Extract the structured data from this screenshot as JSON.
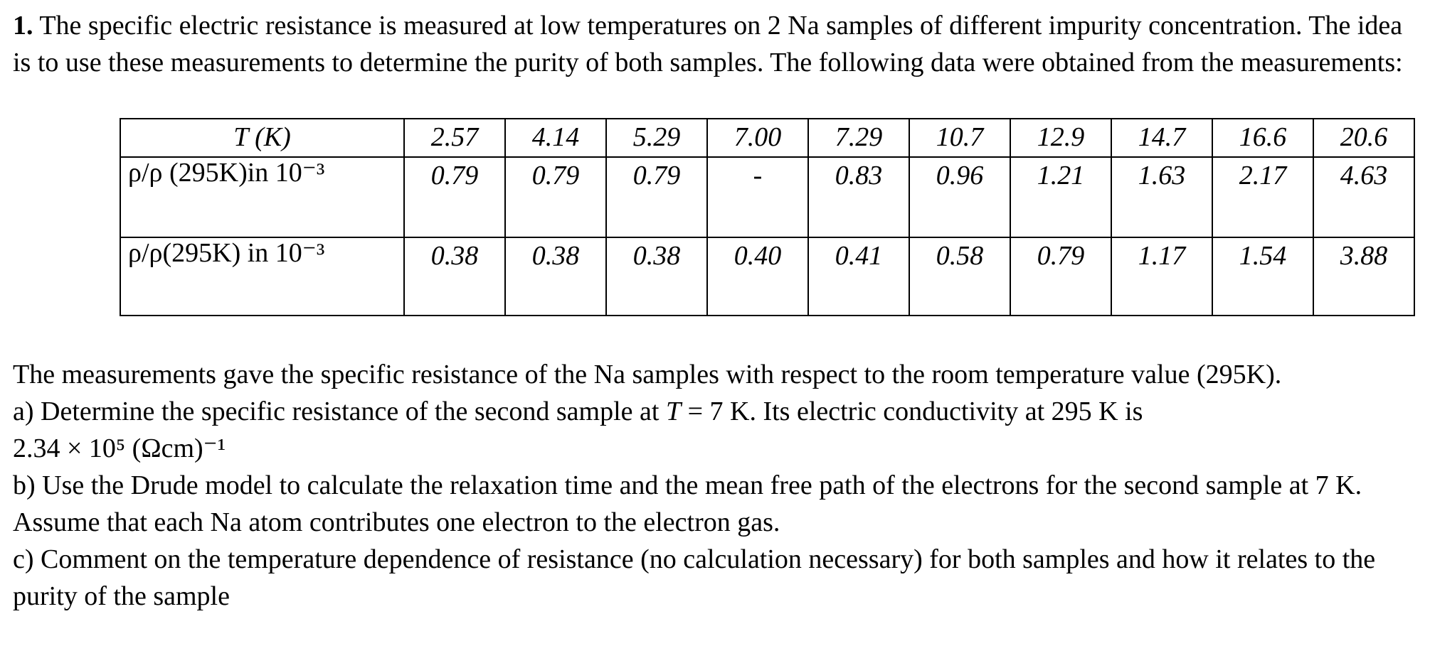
{
  "question": {
    "number": "1.",
    "intro": "The specific electric resistance is measured at low temperatures on 2 Na samples of different impurity concentration. The idea is to use these measurements to determine the purity of both samples. The following data were obtained from the measurements:",
    "table": {
      "rows": [
        [
          "T (K)",
          "2.57",
          "4.14",
          "5.29",
          "7.00",
          "7.29",
          "10.7",
          "12.9",
          "14.7",
          "16.6",
          "20.6"
        ],
        [
          "ρ/ρ (295K)in 10⁻³",
          "0.79",
          "0.79",
          "0.79",
          "-",
          "0.83",
          "0.96",
          "1.21",
          "1.63",
          "2.17",
          "4.63"
        ],
        [
          "ρ/ρ(295K) in 10⁻³",
          "0.38",
          "0.38",
          "0.38",
          "0.40",
          "0.41",
          "0.58",
          "0.79",
          "1.17",
          "1.54",
          "3.88"
        ]
      ]
    },
    "statement": "The measurements gave the specific resistance of the Na samples with respect to the room temperature value (295K).",
    "part_a": {
      "before": "a) Determine the specific resistance of the second sample at ",
      "variable": "T",
      "after": " = 7 K. Its electric conductivity at 295 K is",
      "value": "2.34 × 10⁵ (Ωcm)⁻¹"
    },
    "part_b": "b) Use the Drude model to calculate the relaxation time and the mean free path of the electrons for the second sample at 7 K. Assume that each Na atom contributes one electron to the electron gas.",
    "part_c": "c) Comment on the temperature dependence of resistance (no calculation necessary) for both samples and how it relates to the purity of the sample"
  }
}
